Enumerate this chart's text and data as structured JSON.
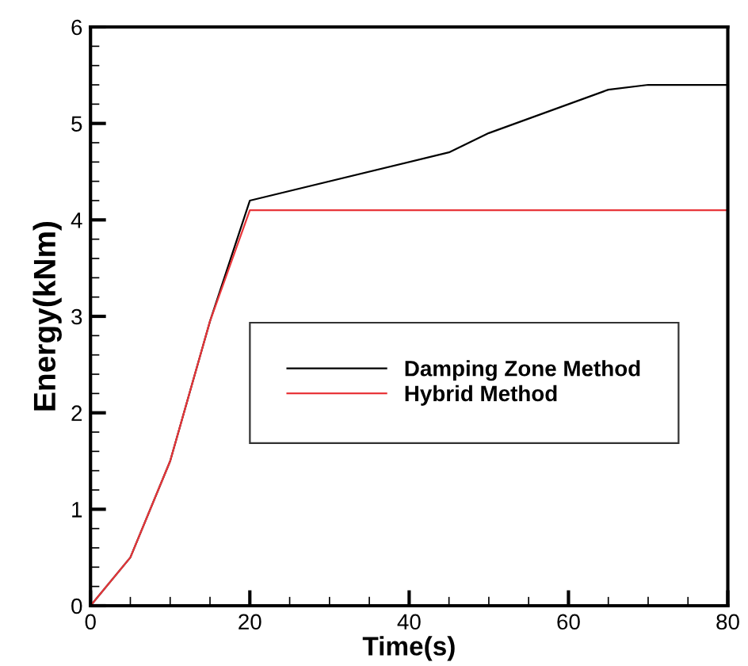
{
  "chart_data": {
    "type": "line",
    "xlabel": "Time(s)",
    "ylabel": "Energy(kNm)",
    "xlim": [
      0,
      80
    ],
    "xticks": [
      0,
      20,
      40,
      60,
      80
    ],
    "ylim": [
      0,
      6
    ],
    "yticks": [
      0,
      1,
      2,
      3,
      4,
      5,
      6
    ],
    "grid": false,
    "legend": "center right",
    "marker": "none",
    "line_style": "solid",
    "series": [
      {
        "name": "Damping Zone Method",
        "color": "#000000",
        "x": [
          0,
          5,
          10,
          15,
          20,
          45,
          50,
          65,
          70,
          80
        ],
        "values": [
          0,
          0.5,
          1.5,
          2.95,
          4.2,
          4.7,
          4.9,
          5.35,
          5.4,
          5.4
        ]
      },
      {
        "name": "Hybrid Method",
        "color": "#e8363a",
        "x": [
          0,
          5,
          10,
          15,
          20,
          80
        ],
        "values": [
          0,
          0.5,
          1.5,
          2.95,
          4.1,
          4.1
        ]
      }
    ]
  }
}
